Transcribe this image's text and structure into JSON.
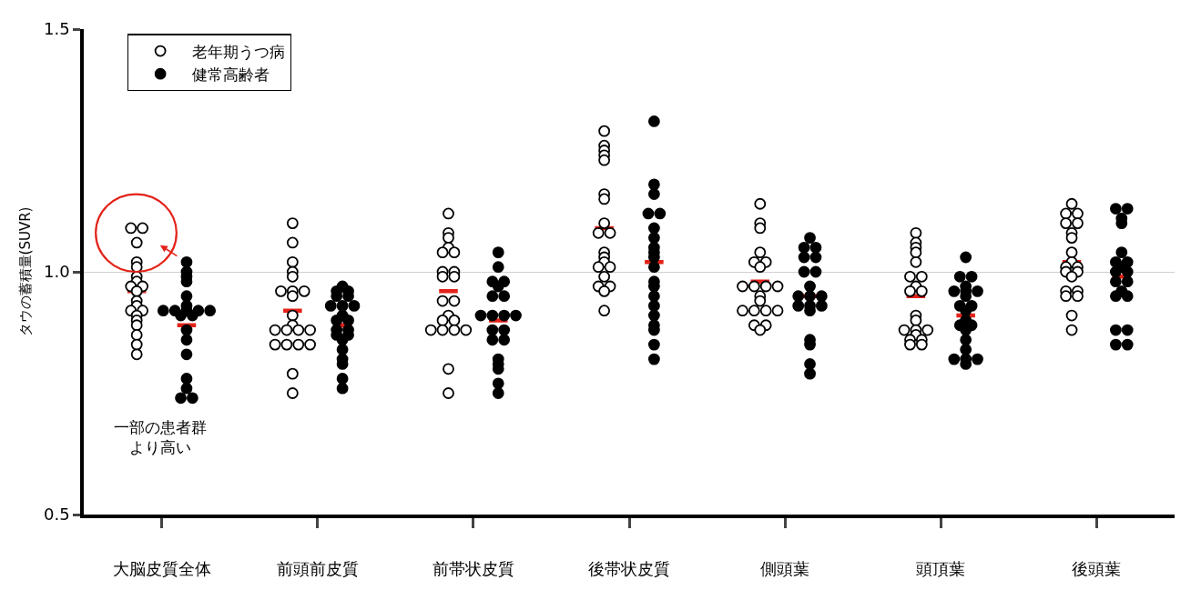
{
  "chart_data": {
    "type": "scatter",
    "ylabel": "タウの蓄積量(SUVR)",
    "categories": [
      "大脳皮質全体",
      "前頭前皮質",
      "前帯状皮質",
      "後帯状皮質",
      "側頭葉",
      "頭頂葉",
      "後頭葉"
    ],
    "ylim": [
      0.5,
      1.5
    ],
    "yticks": [
      {
        "value": 0.5,
        "label": "0.5"
      },
      {
        "value": 1,
        "label": "1.0"
      },
      {
        "value": 1.5,
        "label": "1.5"
      }
    ],
    "grid": "y",
    "legend": "top left",
    "marker": "circle",
    "annotations": [
      "一部の患者群より高い"
    ],
    "series": [
      {
        "name": "老年期うつ病",
        "color": "#ffffff",
        "x": [
          "大脳皮質全体",
          "大脳皮質全体",
          "大脳皮質全体",
          "大脳皮質全体",
          "大脳皮質全体",
          "大脳皮質全体",
          "大脳皮質全体",
          "大脳皮質全体",
          "大脳皮質全体",
          "大脳皮質全体",
          "大脳皮質全体",
          "大脳皮質全体",
          "大脳皮質全体",
          "大脳皮質全体",
          "大脳皮質全体",
          "大脳皮質全体",
          "大脳皮質全体",
          "大脳皮質全体",
          "大脳皮質全体",
          "大脳皮質全体",
          "前頭前皮質",
          "前頭前皮質",
          "前頭前皮質",
          "前頭前皮質",
          "前頭前皮質",
          "前頭前皮質",
          "前頭前皮質",
          "前頭前皮質",
          "前頭前皮質",
          "前頭前皮質",
          "前頭前皮質",
          "前頭前皮質",
          "前頭前皮質",
          "前頭前皮質",
          "前頭前皮質",
          "前頭前皮質",
          "前頭前皮質",
          "前頭前皮質",
          "前頭前皮質",
          "前頭前皮質",
          "前頭前皮質",
          "前帯状皮質",
          "前帯状皮質",
          "前帯状皮質",
          "前帯状皮質",
          "前帯状皮質",
          "前帯状皮質",
          "前帯状皮質",
          "前帯状皮質",
          "前帯状皮質",
          "前帯状皮質",
          "前帯状皮質",
          "前帯状皮質",
          "前帯状皮質",
          "前帯状皮質",
          "前帯状皮質",
          "前帯状皮質",
          "前帯状皮質",
          "前帯状皮質",
          "前帯状皮質",
          "前帯状皮質",
          "前帯状皮質",
          "後帯状皮質",
          "後帯状皮質",
          "後帯状皮質",
          "後帯状皮質",
          "後帯状皮質",
          "後帯状皮質",
          "後帯状皮質",
          "後帯状皮質",
          "後帯状皮質",
          "後帯状皮質",
          "後帯状皮質",
          "後帯状皮質",
          "後帯状皮質",
          "後帯状皮質",
          "後帯状皮質",
          "後帯状皮質",
          "後帯状皮質",
          "後帯状皮質",
          "後帯状皮質",
          "後帯状皮質",
          "側頭葉",
          "側頭葉",
          "側頭葉",
          "側頭葉",
          "側頭葉",
          "側頭葉",
          "側頭葉",
          "側頭葉",
          "側頭葉",
          "側頭葉",
          "側頭葉",
          "側頭葉",
          "側頭葉",
          "側頭葉",
          "側頭葉",
          "側頭葉",
          "側頭葉",
          "側頭葉",
          "側頭葉",
          "側頭葉",
          "頭頂葉",
          "頭頂葉",
          "頭頂葉",
          "頭頂葉",
          "頭頂葉",
          "頭頂葉",
          "頭頂葉",
          "頭頂葉",
          "頭頂葉",
          "頭頂葉",
          "頭頂葉",
          "頭頂葉",
          "頭頂葉",
          "頭頂葉",
          "頭頂葉",
          "頭頂葉",
          "頭頂葉",
          "頭頂葉",
          "頭頂葉",
          "頭頂葉",
          "後頭葉",
          "後頭葉",
          "後頭葉",
          "後頭葉",
          "後頭葉",
          "後頭葉",
          "後頭葉",
          "後頭葉",
          "後頭葉",
          "後頭葉",
          "後頭葉",
          "後頭葉",
          "後頭葉",
          "後頭葉",
          "後頭葉",
          "後頭葉",
          "後頭葉",
          "後頭葉",
          "後頭葉",
          "後頭葉"
        ],
        "values": [
          1.09,
          1.09,
          1.06,
          1.02,
          1.01,
          0.99,
          0.98,
          0.97,
          0.97,
          0.96,
          0.94,
          0.93,
          0.92,
          0.92,
          0.91,
          0.9,
          0.89,
          0.87,
          0.85,
          0.83,
          1.1,
          1.06,
          1.02,
          1.0,
          0.99,
          0.96,
          0.96,
          0.96,
          0.95,
          0.91,
          0.89,
          0.88,
          0.88,
          0.88,
          0.88,
          0.85,
          0.85,
          0.85,
          0.85,
          0.79,
          0.75,
          1.12,
          1.08,
          1.07,
          1.05,
          1.04,
          1.04,
          1.0,
          1.0,
          0.99,
          0.99,
          0.94,
          0.94,
          0.91,
          0.9,
          0.9,
          0.88,
          0.88,
          0.88,
          0.88,
          0.8,
          0.75,
          1.29,
          1.26,
          1.25,
          1.24,
          1.23,
          1.16,
          1.15,
          1.1,
          1.08,
          1.08,
          1.04,
          1.03,
          1.02,
          1.01,
          1.01,
          0.99,
          0.97,
          0.97,
          0.96,
          0.92,
          1.14,
          1.1,
          1.09,
          1.04,
          1.02,
          1.02,
          1.01,
          0.97,
          0.97,
          0.97,
          0.97,
          0.95,
          0.94,
          0.92,
          0.92,
          0.92,
          0.92,
          0.89,
          0.89,
          0.88,
          1.08,
          1.06,
          1.05,
          1.04,
          1.02,
          0.99,
          0.99,
          0.97,
          0.96,
          0.96,
          0.91,
          0.9,
          0.88,
          0.88,
          0.88,
          0.87,
          0.86,
          0.86,
          0.85,
          0.85,
          1.14,
          1.12,
          1.12,
          1.1,
          1.1,
          1.08,
          1.07,
          1.04,
          1.02,
          1.01,
          1.01,
          1.0,
          1.0,
          0.99,
          0.96,
          0.96,
          0.95,
          0.95,
          0.91,
          0.88
        ]
      },
      {
        "name": "健常高齢者",
        "color": "#000000",
        "x": [
          "大脳皮質全体",
          "大脳皮質全体",
          "大脳皮質全体",
          "大脳皮質全体",
          "大脳皮質全体",
          "大脳皮質全体",
          "大脳皮質全体",
          "大脳皮質全体",
          "大脳皮質全体",
          "大脳皮質全体",
          "大脳皮質全体",
          "大脳皮質全体",
          "大脳皮質全体",
          "大脳皮質全体",
          "大脳皮質全体",
          "大脳皮質全体",
          "大脳皮質全体",
          "大脳皮質全体",
          "大脳皮質全体",
          "大脳皮質全体",
          "前頭前皮質",
          "前頭前皮質",
          "前頭前皮質",
          "前頭前皮質",
          "前頭前皮質",
          "前頭前皮質",
          "前頭前皮質",
          "前頭前皮質",
          "前頭前皮質",
          "前頭前皮質",
          "前頭前皮質",
          "前頭前皮質",
          "前頭前皮質",
          "前頭前皮質",
          "前頭前皮質",
          "前頭前皮質",
          "前頭前皮質",
          "前頭前皮質",
          "前頭前皮質",
          "前頭前皮質",
          "前頭前皮質",
          "前帯状皮質",
          "前帯状皮質",
          "前帯状皮質",
          "前帯状皮質",
          "前帯状皮質",
          "前帯状皮質",
          "前帯状皮質",
          "前帯状皮質",
          "前帯状皮質",
          "前帯状皮質",
          "前帯状皮質",
          "前帯状皮質",
          "前帯状皮質",
          "前帯状皮質",
          "前帯状皮質",
          "前帯状皮質",
          "前帯状皮質",
          "前帯状皮質",
          "前帯状皮質",
          "前帯状皮質",
          "後帯状皮質",
          "後帯状皮質",
          "後帯状皮質",
          "後帯状皮質",
          "後帯状皮質",
          "後帯状皮質",
          "後帯状皮質",
          "後帯状皮質",
          "後帯状皮質",
          "後帯状皮質",
          "後帯状皮質",
          "後帯状皮質",
          "後帯状皮質",
          "後帯状皮質",
          "後帯状皮質",
          "後帯状皮質",
          "後帯状皮質",
          "後帯状皮質",
          "後帯状皮質",
          "後帯状皮質",
          "側頭葉",
          "側頭葉",
          "側頭葉",
          "側頭葉",
          "側頭葉",
          "側頭葉",
          "側頭葉",
          "側頭葉",
          "側頭葉",
          "側頭葉",
          "側頭葉",
          "側頭葉",
          "側頭葉",
          "側頭葉",
          "側頭葉",
          "側頭葉",
          "側頭葉",
          "側頭葉",
          "側頭葉",
          "頭頂葉",
          "頭頂葉",
          "頭頂葉",
          "頭頂葉",
          "頭頂葉",
          "頭頂葉",
          "頭頂葉",
          "頭頂葉",
          "頭頂葉",
          "頭頂葉",
          "頭頂葉",
          "頭頂葉",
          "頭頂葉",
          "頭頂葉",
          "頭頂葉",
          "頭頂葉",
          "頭頂葉",
          "頭頂葉",
          "頭頂葉",
          "頭頂葉",
          "頭頂葉",
          "後頭葉",
          "後頭葉",
          "後頭葉",
          "後頭葉",
          "後頭葉",
          "後頭葉",
          "後頭葉",
          "後頭葉",
          "後頭葉",
          "後頭葉",
          "後頭葉",
          "後頭葉",
          "後頭葉",
          "後頭葉",
          "後頭葉",
          "後頭葉",
          "後頭葉",
          "後頭葉",
          "後頭葉"
        ],
        "values": [
          1.02,
          1.0,
          0.99,
          0.98,
          0.95,
          0.93,
          0.92,
          0.92,
          0.92,
          0.92,
          0.92,
          0.91,
          0.91,
          0.88,
          0.86,
          0.83,
          0.78,
          0.76,
          0.74,
          0.74,
          0.97,
          0.96,
          0.96,
          0.95,
          0.95,
          0.93,
          0.93,
          0.93,
          0.91,
          0.9,
          0.9,
          0.88,
          0.88,
          0.87,
          0.87,
          0.86,
          0.84,
          0.82,
          0.81,
          0.78,
          0.76,
          1.04,
          1.01,
          0.98,
          0.98,
          0.97,
          0.95,
          0.95,
          0.91,
          0.91,
          0.91,
          0.91,
          0.88,
          0.88,
          0.86,
          0.86,
          0.82,
          0.81,
          0.8,
          0.77,
          0.75,
          1.31,
          1.18,
          1.16,
          1.12,
          1.12,
          1.09,
          1.07,
          1.05,
          1.04,
          1.03,
          1.01,
          0.98,
          0.97,
          0.95,
          0.93,
          0.91,
          0.89,
          0.88,
          0.85,
          0.82,
          1.07,
          1.05,
          1.05,
          1.03,
          1.03,
          1.0,
          1.0,
          0.97,
          0.95,
          0.95,
          0.95,
          0.93,
          0.93,
          0.93,
          0.92,
          0.86,
          0.85,
          0.81,
          0.79,
          1.03,
          0.99,
          0.99,
          0.97,
          0.96,
          0.96,
          0.96,
          0.95,
          0.93,
          0.93,
          0.92,
          0.9,
          0.89,
          0.89,
          0.88,
          0.86,
          0.84,
          0.82,
          0.82,
          0.82,
          0.81,
          1.13,
          1.13,
          1.11,
          1.1,
          1.04,
          1.02,
          1.02,
          1.01,
          1.0,
          1.0,
          0.98,
          0.98,
          0.96,
          0.95,
          0.95,
          0.88,
          0.88,
          0.85,
          0.85
        ]
      },
      {
        "type": "box",
        "color": "#e32219",
        "boxes": [
          {
            "low": 0.96,
            "q1": 0.96,
            "median": 0.96,
            "q3": 0.96,
            "high": 0.96
          },
          {
            "low": 0.92,
            "q1": 0.92,
            "median": 0.92,
            "q3": 0.92,
            "high": 0.92
          },
          {
            "low": 0.96,
            "q1": 0.96,
            "median": 0.96,
            "q3": 0.96,
            "high": 0.96
          },
          {
            "low": 1.09,
            "q1": 1.09,
            "median": 1.09,
            "q3": 1.09,
            "high": 1.09
          },
          {
            "low": 0.98,
            "q1": 0.98,
            "median": 0.98,
            "q3": 0.98,
            "high": 0.98
          },
          {
            "low": 0.95,
            "q1": 0.95,
            "median": 0.95,
            "q3": 0.95,
            "high": 0.95
          },
          {
            "low": 1.02,
            "q1": 1.02,
            "median": 1.02,
            "q3": 1.02,
            "high": 1.02
          }
        ]
      },
      {
        "type": "box",
        "color": "#e32219",
        "boxes": [
          {
            "low": 0.89,
            "q1": 0.89,
            "median": 0.89,
            "q3": 0.89,
            "high": 0.89
          },
          {
            "low": 0.89,
            "q1": 0.89,
            "median": 0.89,
            "q3": 0.89,
            "high": 0.89
          },
          {
            "low": 0.9,
            "q1": 0.9,
            "median": 0.9,
            "q3": 0.9,
            "high": 0.9
          },
          {
            "low": 1.02,
            "q1": 1.02,
            "median": 1.02,
            "q3": 1.02,
            "high": 1.02
          },
          {
            "low": 0.95,
            "q1": 0.95,
            "median": 0.95,
            "q3": 0.95,
            "high": 0.95
          },
          {
            "low": 0.91,
            "q1": 0.91,
            "median": 0.91,
            "q3": 0.91,
            "high": 0.91
          },
          {
            "low": 0.99,
            "q1": 0.99,
            "median": 0.99,
            "q3": 0.99,
            "high": 0.99
          }
        ]
      }
    ]
  }
}
